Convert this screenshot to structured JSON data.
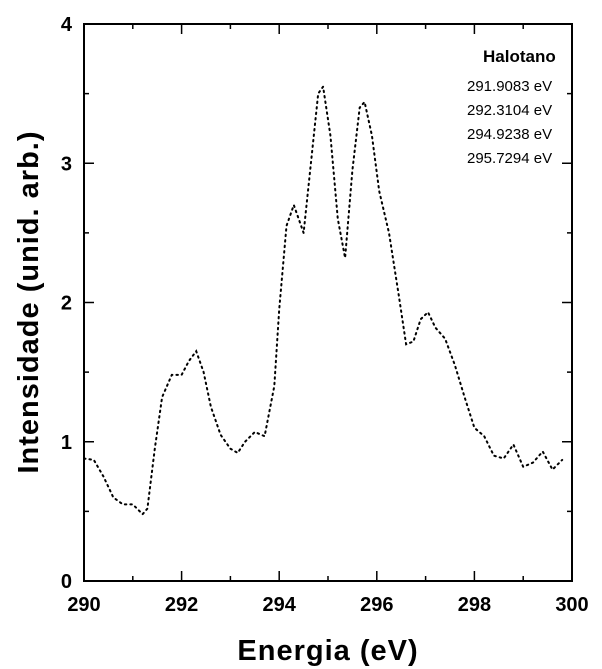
{
  "chart_data": {
    "type": "line",
    "title": "",
    "xlabel": "Energia (eV)",
    "ylabel": "Intensidade (unid. arb.)",
    "xlim": [
      290,
      300
    ],
    "ylim": [
      0,
      4
    ],
    "x_ticks": [
      290,
      292,
      294,
      296,
      298,
      300
    ],
    "y_ticks": [
      0,
      1,
      2,
      3,
      4
    ],
    "x_tick_labels": [
      "290",
      "292",
      "294",
      "296",
      "298",
      "300"
    ],
    "y_tick_labels": [
      "0",
      "1",
      "2",
      "3",
      "4"
    ],
    "grid": false,
    "line_style": "dotted",
    "line_color": "#000000",
    "legend": {
      "placement": "top-right",
      "title": "Halotano",
      "entries": [
        "291.9083 eV",
        "292.3104 eV",
        "294.9238 eV",
        "295.7294 eV"
      ]
    },
    "series": [
      {
        "x": [
          290.0,
          290.2,
          290.4,
          290.6,
          290.8,
          291.0,
          291.2,
          291.3,
          291.45,
          291.6,
          291.8,
          292.0,
          292.15,
          292.3,
          292.45,
          292.6,
          292.8,
          293.0,
          293.15,
          293.3,
          293.5,
          293.7,
          293.9,
          294.0,
          294.15,
          294.3,
          294.5,
          294.65,
          294.8,
          294.9,
          295.05,
          295.2,
          295.35,
          295.5,
          295.65,
          295.75,
          295.9,
          296.05,
          296.25,
          296.45,
          296.6,
          296.75,
          296.9,
          297.05,
          297.2,
          297.4,
          297.6,
          297.8,
          298.0,
          298.2,
          298.4,
          298.6,
          298.8,
          299.0,
          299.2,
          299.4,
          299.6,
          299.8
        ],
        "y": [
          0.88,
          0.87,
          0.75,
          0.6,
          0.55,
          0.55,
          0.48,
          0.52,
          0.95,
          1.32,
          1.48,
          1.48,
          1.58,
          1.65,
          1.5,
          1.25,
          1.05,
          0.95,
          0.92,
          1.0,
          1.07,
          1.04,
          1.4,
          1.95,
          2.55,
          2.7,
          2.5,
          3.0,
          3.5,
          3.55,
          3.2,
          2.6,
          2.32,
          2.95,
          3.4,
          3.44,
          3.2,
          2.8,
          2.5,
          2.05,
          1.7,
          1.72,
          1.88,
          1.93,
          1.82,
          1.74,
          1.55,
          1.32,
          1.1,
          1.04,
          0.9,
          0.88,
          0.98,
          0.82,
          0.85,
          0.93,
          0.8,
          0.87
        ]
      }
    ]
  }
}
